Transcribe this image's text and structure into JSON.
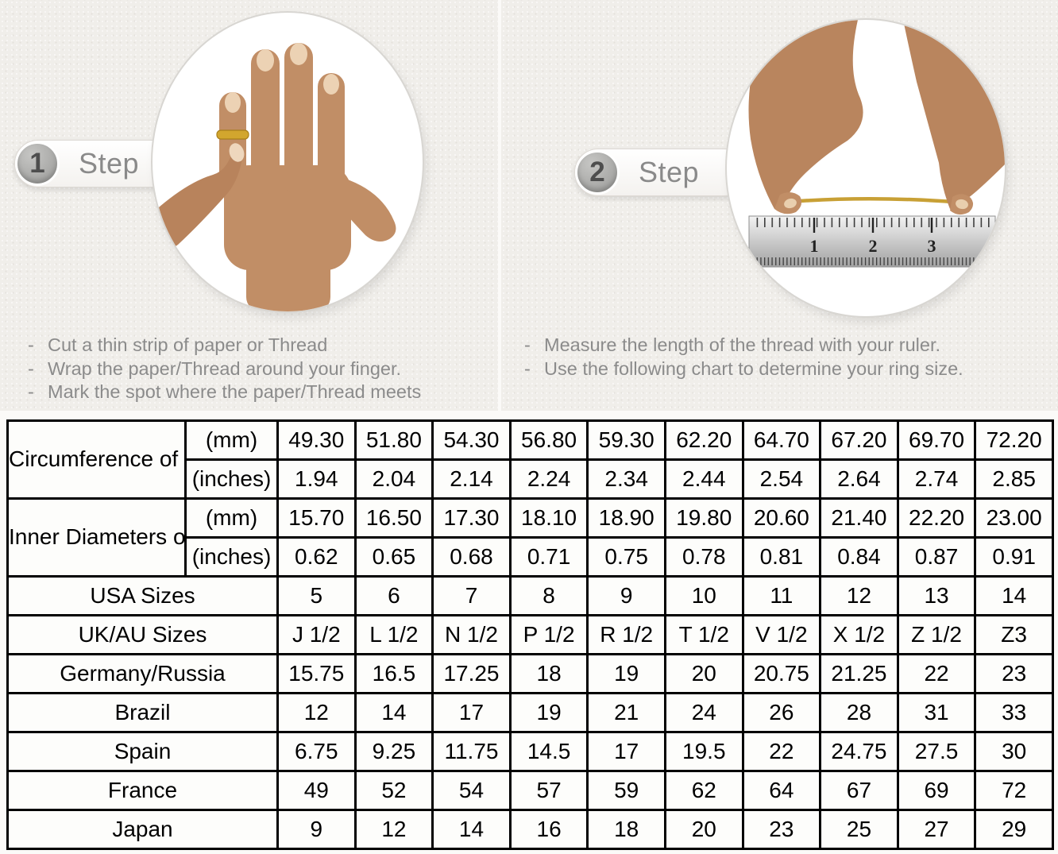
{
  "steps": [
    {
      "number": "1",
      "label": "Step",
      "instructions": [
        "Cut a thin strip of paper or Thread",
        "Wrap the paper/Thread around your finger.",
        "Mark the spot where the paper/Thread meets"
      ]
    },
    {
      "number": "2",
      "label": "Step",
      "instructions": [
        "Measure the length of the thread with your ruler.",
        "Use the following chart to determine your ring size."
      ]
    }
  ],
  "size_chart": {
    "measure_groups": [
      {
        "label": "Circumference of Your Finger",
        "rows": [
          {
            "unit": "(mm)",
            "shaded": true,
            "values": [
              "49.30",
              "51.80",
              "54.30",
              "56.80",
              "59.30",
              "62.20",
              "64.70",
              "67.20",
              "69.70",
              "72.20"
            ]
          },
          {
            "unit": "(inches)",
            "shaded": false,
            "values": [
              "1.94",
              "2.04",
              "2.14",
              "2.24",
              "2.34",
              "2.44",
              "2.54",
              "2.64",
              "2.74",
              "2.85"
            ]
          }
        ]
      },
      {
        "label": "Inner Diameters of Rings",
        "rows": [
          {
            "unit": "(mm)",
            "shaded": false,
            "values": [
              "15.70",
              "16.50",
              "17.30",
              "18.10",
              "18.90",
              "19.80",
              "20.60",
              "21.40",
              "22.20",
              "23.00"
            ]
          },
          {
            "unit": "(inches)",
            "shaded": false,
            "values": [
              "0.62",
              "0.65",
              "0.68",
              "0.71",
              "0.75",
              "0.78",
              "0.81",
              "0.84",
              "0.87",
              "0.91"
            ]
          }
        ]
      }
    ],
    "region_rows": [
      {
        "label": "USA Sizes",
        "shaded": true,
        "values": [
          "5",
          "6",
          "7",
          "8",
          "9",
          "10",
          "11",
          "12",
          "13",
          "14"
        ]
      },
      {
        "label": "UK/AU Sizes",
        "shaded": false,
        "values": [
          "J 1/2",
          "L 1/2",
          "N 1/2",
          "P 1/2",
          "R 1/2",
          "T 1/2",
          "V 1/2",
          "X 1/2",
          "Z 1/2",
          "Z3"
        ]
      },
      {
        "label": "Germany/Russia",
        "shaded": false,
        "values": [
          "15.75",
          "16.5",
          "17.25",
          "18",
          "19",
          "20",
          "20.75",
          "21.25",
          "22",
          "23"
        ]
      },
      {
        "label": "Brazil",
        "shaded": false,
        "values": [
          "12",
          "14",
          "17",
          "19",
          "21",
          "24",
          "26",
          "28",
          "31",
          "33"
        ]
      },
      {
        "label": "Spain",
        "shaded": false,
        "values": [
          "6.75",
          "9.25",
          "11.75",
          "14.5",
          "17",
          "19.5",
          "22",
          "24.75",
          "27.5",
          "30"
        ]
      },
      {
        "label": "France",
        "shaded": false,
        "values": [
          "49",
          "52",
          "54",
          "57",
          "59",
          "62",
          "64",
          "67",
          "69",
          "72"
        ]
      },
      {
        "label": "Japan",
        "shaded": false,
        "values": [
          "9",
          "12",
          "14",
          "16",
          "18",
          "20",
          "23",
          "25",
          "27",
          "29"
        ]
      }
    ]
  },
  "colors": {
    "panel_background": "#f0eeea",
    "shaded_cell": "#dcdcdc",
    "table_border": "#000000",
    "instruction_text": "#8b8b8b",
    "gold_accent": "#cda22e"
  }
}
